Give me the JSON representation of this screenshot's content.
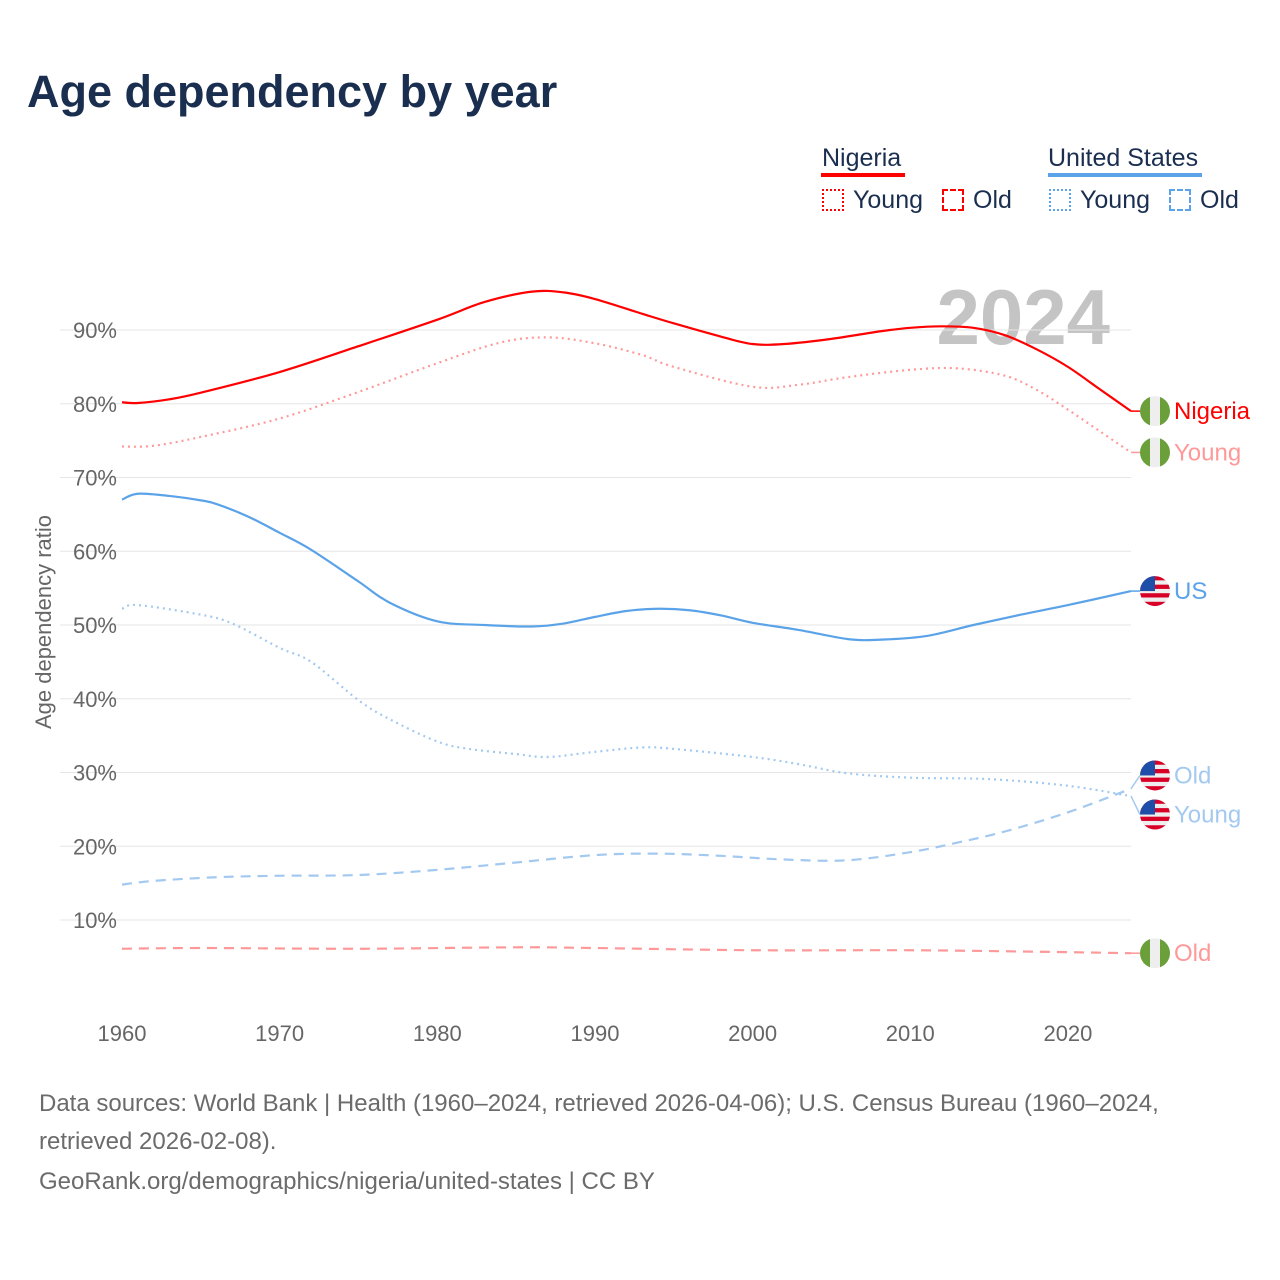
{
  "title": "Age dependency by year",
  "legend": {
    "groups": [
      {
        "name": "Nigeria",
        "color": "#ff0000",
        "items": [
          "Young",
          "Old"
        ]
      },
      {
        "name": "United States",
        "color": "#5ba3e8",
        "items": [
          "Young",
          "Old"
        ]
      }
    ]
  },
  "watermark_year": "2024",
  "footer": {
    "line1": "Data sources: World Bank | Health (1960–2024, retrieved 2026-04-06); U.S. Census Bureau (1960–2024,",
    "line2": "retrieved 2026-02-08).",
    "line3": "GeoRank.org/demographics/nigeria/united-states | CC BY"
  },
  "chart_data": {
    "type": "line",
    "title": "Age dependency by year",
    "xlabel": "",
    "ylabel": "Age dependency ratio",
    "xlim": [
      1960,
      2024
    ],
    "ylim": [
      0,
      100
    ],
    "x_ticks": [
      1960,
      1970,
      1980,
      1990,
      2000,
      2010,
      2020
    ],
    "x_tick_labels": [
      "1960",
      "1970",
      "1980",
      "1990",
      "2000",
      "2010",
      "2020"
    ],
    "y_ticks": [
      10,
      20,
      30,
      40,
      50,
      60,
      70,
      80,
      90
    ],
    "y_tick_labels": [
      "10%",
      "20%",
      "30%",
      "40%",
      "50%",
      "60%",
      "70%",
      "80%",
      "90%"
    ],
    "grid": true,
    "legend_position": "top-right",
    "series": [
      {
        "name": "Nigeria",
        "label": "Nigeria",
        "flag": "nigeria",
        "color": "#ff0000",
        "dash": "solid",
        "label_offset": 0,
        "points": [
          [
            1960,
            80.2
          ],
          [
            1961,
            80.1
          ],
          [
            1963,
            80.6
          ],
          [
            1965,
            81.5
          ],
          [
            1970,
            84.3
          ],
          [
            1975,
            87.8
          ],
          [
            1980,
            91.4
          ],
          [
            1983,
            93.8
          ],
          [
            1986,
            95.2
          ],
          [
            1988,
            95.1
          ],
          [
            1990,
            94.2
          ],
          [
            1993,
            92.2
          ],
          [
            1995,
            90.9
          ],
          [
            1998,
            89.1
          ],
          [
            2000,
            88.1
          ],
          [
            2002,
            88.1
          ],
          [
            2005,
            88.8
          ],
          [
            2008,
            89.8
          ],
          [
            2010,
            90.3
          ],
          [
            2012,
            90.5
          ],
          [
            2014,
            90.3
          ],
          [
            2016,
            89.3
          ],
          [
            2018,
            87.4
          ],
          [
            2020,
            85.0
          ],
          [
            2022,
            82.0
          ],
          [
            2024,
            79.0
          ]
        ]
      },
      {
        "name": "Nigeria Young",
        "label": "Young",
        "flag": "nigeria",
        "color": "#ff9999",
        "dash": "dotted",
        "label_offset": 0,
        "points": [
          [
            1960,
            74.2
          ],
          [
            1962,
            74.3
          ],
          [
            1965,
            75.5
          ],
          [
            1970,
            78.0
          ],
          [
            1975,
            81.6
          ],
          [
            1980,
            85.5
          ],
          [
            1984,
            88.3
          ],
          [
            1987,
            89.0
          ],
          [
            1990,
            88.2
          ],
          [
            1993,
            86.6
          ],
          [
            1995,
            85.0
          ],
          [
            2000,
            82.3
          ],
          [
            2003,
            82.6
          ],
          [
            2006,
            83.6
          ],
          [
            2010,
            84.6
          ],
          [
            2013,
            84.8
          ],
          [
            2016,
            83.8
          ],
          [
            2018,
            81.9
          ],
          [
            2020,
            79.2
          ],
          [
            2022,
            76.3
          ],
          [
            2024,
            73.4
          ]
        ]
      },
      {
        "name": "Nigeria Old",
        "label": "Old",
        "flag": "nigeria",
        "color": "#ff9999",
        "dash": "dashed",
        "label_offset": 0,
        "points": [
          [
            1960,
            6.1
          ],
          [
            1965,
            6.2
          ],
          [
            1975,
            6.1
          ],
          [
            1985,
            6.3
          ],
          [
            1990,
            6.2
          ],
          [
            2000,
            5.9
          ],
          [
            2010,
            5.9
          ],
          [
            2018,
            5.7
          ],
          [
            2024,
            5.5
          ]
        ]
      },
      {
        "name": "United States",
        "label": "US",
        "flag": "us",
        "color": "#5ba3e8",
        "dash": "solid",
        "label_offset": 0,
        "points": [
          [
            1960,
            67.0
          ],
          [
            1961,
            67.8
          ],
          [
            1963,
            67.5
          ],
          [
            1965,
            66.9
          ],
          [
            1966,
            66.4
          ],
          [
            1968,
            64.7
          ],
          [
            1970,
            62.5
          ],
          [
            1972,
            60.2
          ],
          [
            1975,
            55.9
          ],
          [
            1977,
            53.0
          ],
          [
            1980,
            50.5
          ],
          [
            1983,
            50.0
          ],
          [
            1986,
            49.8
          ],
          [
            1988,
            50.2
          ],
          [
            1990,
            51.1
          ],
          [
            1992,
            51.9
          ],
          [
            1994,
            52.2
          ],
          [
            1996,
            52.0
          ],
          [
            1998,
            51.3
          ],
          [
            2000,
            50.3
          ],
          [
            2003,
            49.3
          ],
          [
            2006,
            48.1
          ],
          [
            2008,
            48.0
          ],
          [
            2011,
            48.5
          ],
          [
            2014,
            50.0
          ],
          [
            2017,
            51.4
          ],
          [
            2020,
            52.7
          ],
          [
            2024,
            54.6
          ]
        ]
      },
      {
        "name": "United States Young",
        "label": "Young",
        "flag": "us",
        "color": "#a3c9f0",
        "dash": "dotted",
        "label_offset": -2.5,
        "points": [
          [
            1960,
            52.2
          ],
          [
            1961,
            52.7
          ],
          [
            1965,
            51.4
          ],
          [
            1967,
            50.2
          ],
          [
            1970,
            46.9
          ],
          [
            1972,
            45.0
          ],
          [
            1975,
            39.8
          ],
          [
            1977,
            37.2
          ],
          [
            1980,
            34.2
          ],
          [
            1982,
            33.2
          ],
          [
            1985,
            32.5
          ],
          [
            1987,
            32.1
          ],
          [
            1990,
            32.8
          ],
          [
            1993,
            33.4
          ],
          [
            1995,
            33.2
          ],
          [
            2000,
            32.1
          ],
          [
            2003,
            31.1
          ],
          [
            2006,
            29.9
          ],
          [
            2010,
            29.3
          ],
          [
            2015,
            29.1
          ],
          [
            2020,
            28.2
          ],
          [
            2024,
            26.8
          ]
        ]
      },
      {
        "name": "United States Old",
        "label": "Old",
        "flag": "us",
        "color": "#a3c9f0",
        "dash": "dashed",
        "label_offset": 1.8,
        "points": [
          [
            1960,
            14.8
          ],
          [
            1962,
            15.3
          ],
          [
            1966,
            15.8
          ],
          [
            1970,
            16.0
          ],
          [
            1975,
            16.1
          ],
          [
            1980,
            16.8
          ],
          [
            1985,
            17.8
          ],
          [
            1990,
            18.8
          ],
          [
            1994,
            19.0
          ],
          [
            1998,
            18.7
          ],
          [
            2002,
            18.2
          ],
          [
            2006,
            18.1
          ],
          [
            2010,
            19.2
          ],
          [
            2013,
            20.5
          ],
          [
            2016,
            22.0
          ],
          [
            2020,
            24.6
          ],
          [
            2024,
            27.8
          ]
        ]
      }
    ]
  }
}
